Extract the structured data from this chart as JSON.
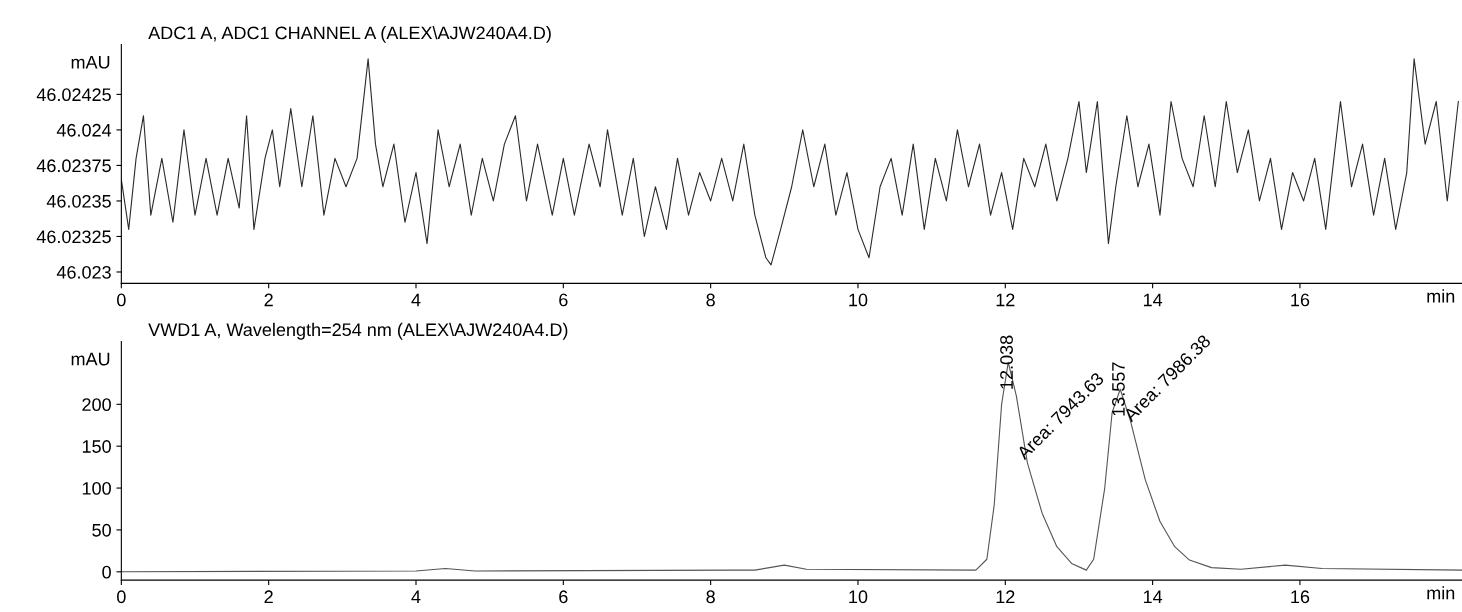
{
  "chart_data": [
    {
      "type": "line",
      "title": "ADC1 A, ADC1 CHANNEL A (ALEX\\AJW240A4.D)",
      "xlabel": "min",
      "ylabel": "mAU",
      "series": [
        {
          "color": "#2b2b2b",
          "x": [
            0.0,
            0.1,
            0.2,
            0.3,
            0.4,
            0.55,
            0.7,
            0.85,
            1.0,
            1.15,
            1.3,
            1.45,
            1.6,
            1.7,
            1.8,
            1.95,
            2.05,
            2.15,
            2.3,
            2.45,
            2.6,
            2.75,
            2.9,
            3.05,
            3.2,
            3.35,
            3.45,
            3.55,
            3.7,
            3.85,
            4.0,
            4.15,
            4.3,
            4.45,
            4.6,
            4.75,
            4.9,
            5.05,
            5.2,
            5.35,
            5.5,
            5.65,
            5.85,
            6.0,
            6.15,
            6.35,
            6.5,
            6.6,
            6.8,
            6.95,
            7.1,
            7.25,
            7.4,
            7.55,
            7.7,
            7.85,
            8.0,
            8.15,
            8.3,
            8.45,
            8.6,
            8.75,
            8.82,
            8.95,
            9.1,
            9.25,
            9.4,
            9.55,
            9.7,
            9.85,
            10.0,
            10.15,
            10.3,
            10.45,
            10.6,
            10.75,
            10.9,
            11.05,
            11.2,
            11.35,
            11.5,
            11.65,
            11.8,
            11.95,
            12.1,
            12.25,
            12.4,
            12.55,
            12.7,
            12.85,
            13.0,
            13.1,
            13.25,
            13.4,
            13.5,
            13.65,
            13.8,
            13.95,
            14.1,
            14.25,
            14.4,
            14.55,
            14.7,
            14.85,
            15.0,
            15.15,
            15.3,
            15.45,
            15.6,
            15.75,
            15.9,
            16.05,
            16.2,
            16.35,
            16.55,
            16.7,
            16.85,
            17.0,
            17.15,
            17.3,
            17.45,
            17.55,
            17.7,
            17.85,
            18.0,
            18.15
          ],
          "values": [
            46.02365,
            46.0233,
            46.0238,
            46.0241,
            46.0234,
            46.0238,
            46.02335,
            46.024,
            46.0234,
            46.0238,
            46.0234,
            46.0238,
            46.02345,
            46.0241,
            46.0233,
            46.0238,
            46.024,
            46.0236,
            46.02415,
            46.0236,
            46.0241,
            46.0234,
            46.0238,
            46.0236,
            46.0238,
            46.0245,
            46.0239,
            46.0236,
            46.0239,
            46.02335,
            46.0237,
            46.0232,
            46.024,
            46.0236,
            46.0239,
            46.0234,
            46.0238,
            46.0235,
            46.0239,
            46.0241,
            46.0235,
            46.0239,
            46.0234,
            46.0238,
            46.0234,
            46.0239,
            46.0236,
            46.024,
            46.0234,
            46.0238,
            46.02325,
            46.0236,
            46.0233,
            46.0238,
            46.0234,
            46.0237,
            46.0235,
            46.0238,
            46.0235,
            46.0239,
            46.0234,
            46.0231,
            46.02305,
            46.0233,
            46.0236,
            46.024,
            46.0236,
            46.0239,
            46.0234,
            46.0237,
            46.0233,
            46.0231,
            46.0236,
            46.0238,
            46.0234,
            46.0239,
            46.0233,
            46.0238,
            46.0235,
            46.024,
            46.0236,
            46.0239,
            46.0234,
            46.0237,
            46.0233,
            46.0238,
            46.0236,
            46.0239,
            46.0235,
            46.0238,
            46.0242,
            46.0237,
            46.0242,
            46.0232,
            46.0236,
            46.0241,
            46.0236,
            46.0239,
            46.0234,
            46.0242,
            46.0238,
            46.0236,
            46.0241,
            46.0236,
            46.0242,
            46.0237,
            46.024,
            46.0235,
            46.0238,
            46.0233,
            46.0237,
            46.0235,
            46.0238,
            46.0233,
            46.0242,
            46.0236,
            46.0239,
            46.0234,
            46.0238,
            46.0233,
            46.0237,
            46.0245,
            46.0239,
            46.0242,
            46.0235,
            46.0242
          ]
        }
      ],
      "xlim": [
        0,
        18.2
      ],
      "xticks": [
        0,
        2,
        4,
        6,
        8,
        10,
        12,
        14,
        16
      ],
      "ylim": [
        46.02292,
        46.0246
      ],
      "yticks": [
        46.023,
        46.02325,
        46.0235,
        46.02375,
        46.024,
        46.02425
      ],
      "grid": false,
      "legend": false
    },
    {
      "type": "line",
      "title": "VWD1 A, Wavelength=254 nm (ALEX\\AJW240A4.D)",
      "xlabel": "min",
      "ylabel": "mAU",
      "series": [
        {
          "color": "#555555",
          "x": [
            0,
            4.0,
            4.4,
            4.8,
            8.3,
            8.6,
            9.0,
            9.3,
            11.6,
            11.75,
            11.85,
            11.95,
            12.04,
            12.15,
            12.3,
            12.5,
            12.7,
            12.9,
            13.1,
            13.2,
            13.35,
            13.45,
            13.56,
            13.7,
            13.9,
            14.1,
            14.3,
            14.5,
            14.8,
            15.2,
            15.8,
            16.3,
            18.2
          ],
          "values": [
            0,
            1,
            4,
            1,
            2,
            2,
            8,
            3,
            2,
            15,
            80,
            200,
            250,
            210,
            130,
            70,
            30,
            10,
            2,
            15,
            100,
            190,
            218,
            180,
            110,
            60,
            30,
            14,
            5,
            3,
            8,
            4,
            2
          ]
        }
      ],
      "annotations": [
        {
          "text": "12.038",
          "x": 12.038,
          "y": 250
        },
        {
          "text": "Area: 7943.63",
          "x": 12.3,
          "y": 130
        },
        {
          "text": "13.557",
          "x": 13.557,
          "y": 218
        },
        {
          "text": "Area: 7986.38",
          "x": 13.75,
          "y": 175
        }
      ],
      "xlim": [
        0,
        18.2
      ],
      "xticks": [
        0,
        2,
        4,
        6,
        8,
        10,
        12,
        14,
        16
      ],
      "ylim": [
        -10,
        275
      ],
      "yticks": [
        0,
        50,
        100,
        150,
        200
      ],
      "grid": false,
      "legend": false
    }
  ]
}
